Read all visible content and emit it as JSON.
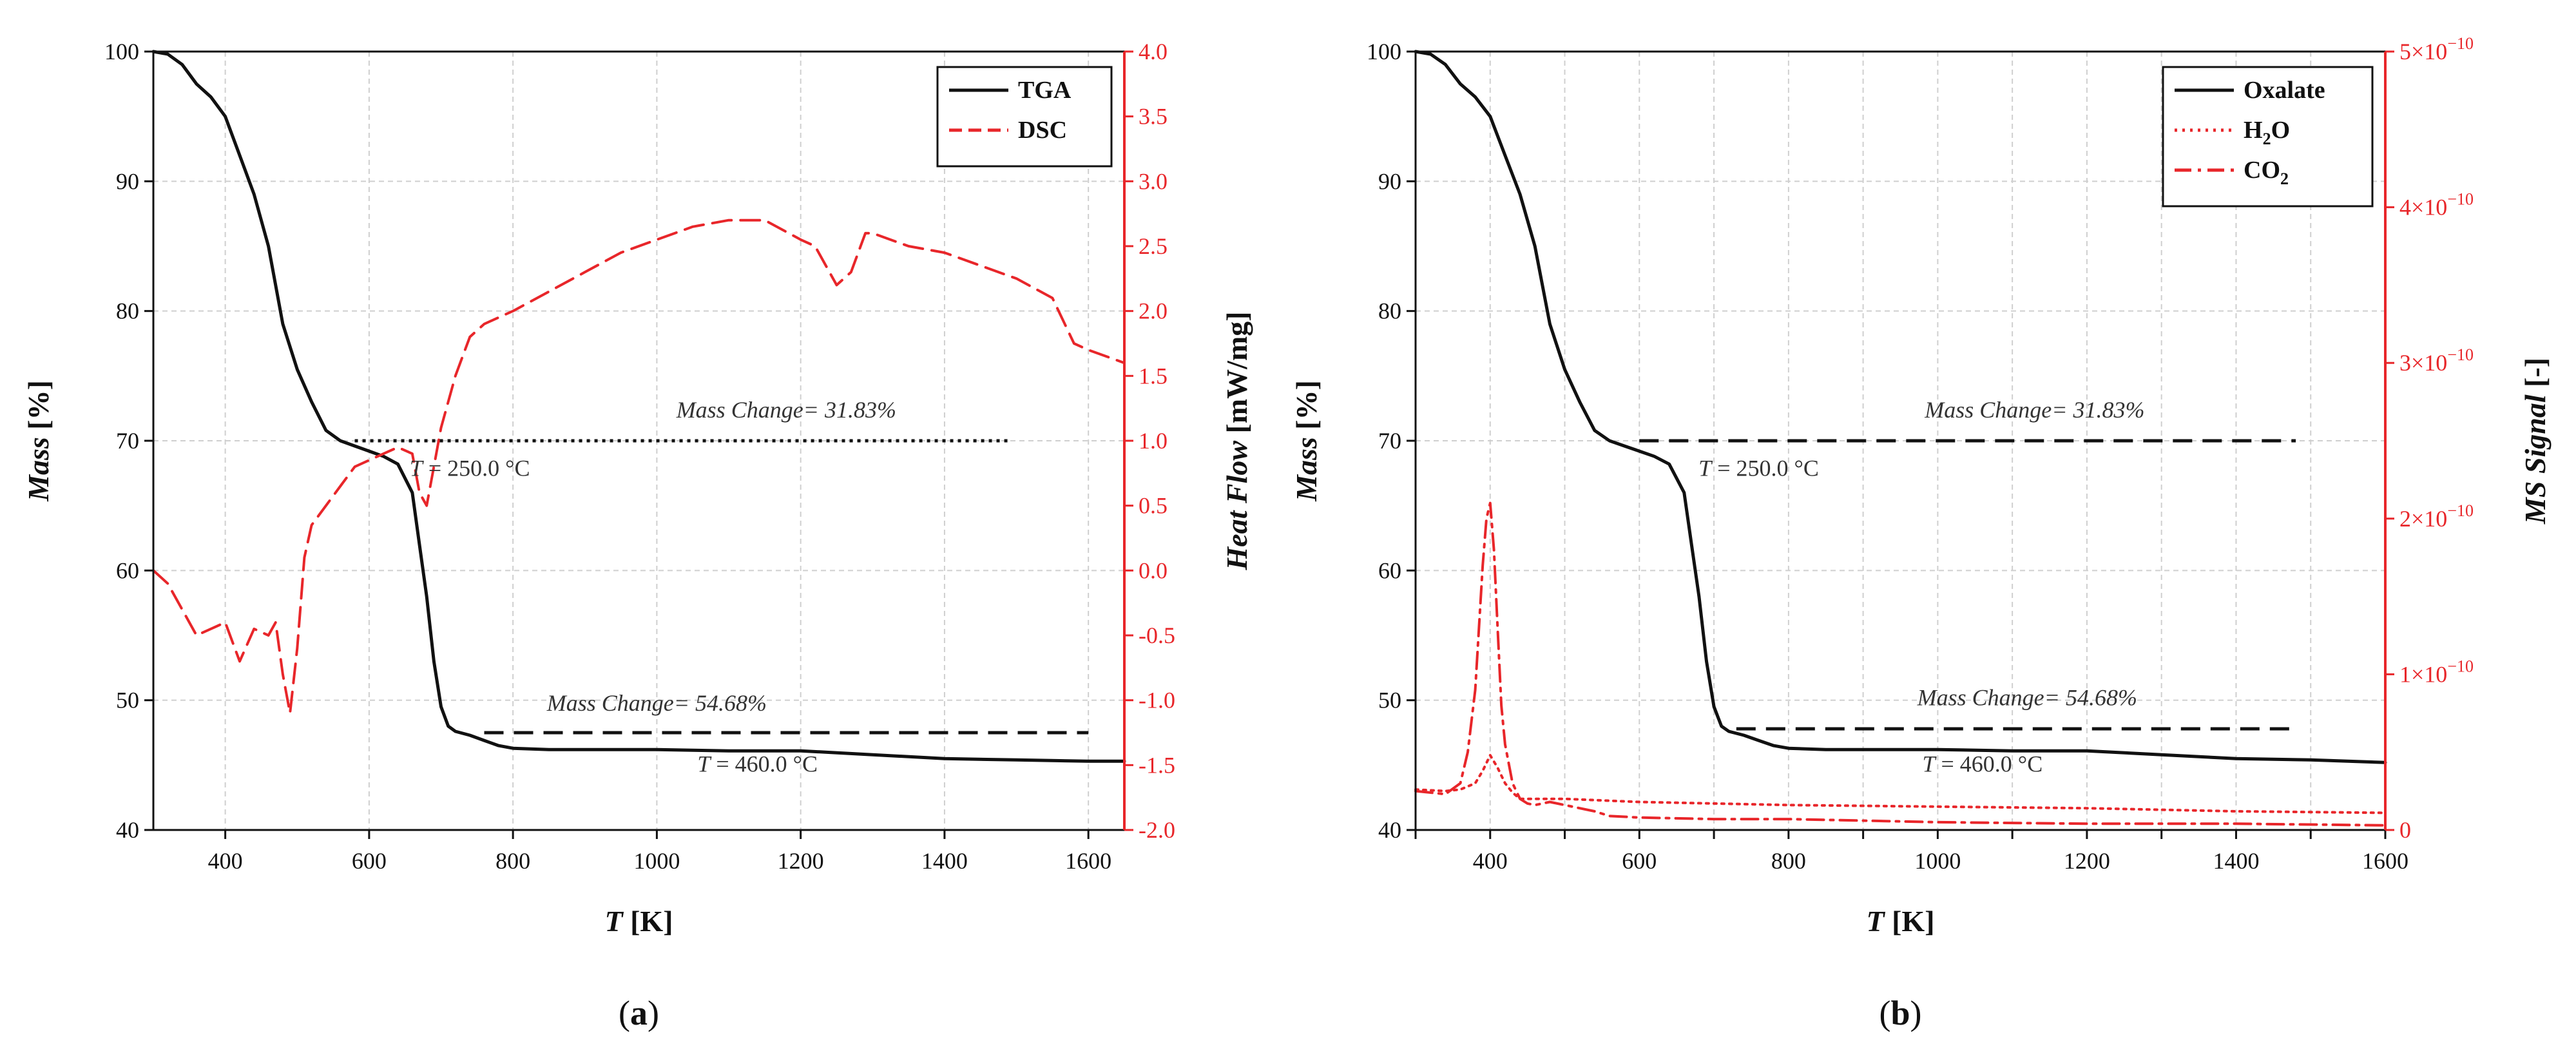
{
  "colors": {
    "black": "#111111",
    "red": "#e8262a",
    "grid": "#cfcfcf"
  },
  "chart_data": [
    {
      "type": "line",
      "panel_label": "(a)",
      "panel_letter": "a",
      "xlabel": "T",
      "xunit": " [K]",
      "ylabel": "Mass",
      "yunit": " [%]",
      "y2label": "Heat Flow",
      "y2unit": " [mW/mg]",
      "xlim": [
        300,
        1650
      ],
      "ylim": [
        40,
        100
      ],
      "y2lim": [
        -2.0,
        4.0
      ],
      "xticks": [
        400,
        600,
        800,
        1000,
        1200,
        1400,
        1600
      ],
      "yticks": [
        40,
        50,
        60,
        70,
        80,
        90,
        100
      ],
      "y2ticks": [
        "-2.0",
        "-1.5",
        "-1.0",
        "-0.5",
        "0.0",
        "0.5",
        "1.0",
        "1.5",
        "2.0",
        "2.5",
        "3.0",
        "3.5",
        "4.0"
      ],
      "legend": [
        {
          "name": "TGA",
          "style": "solid"
        },
        {
          "name": "DSC",
          "style": "dashed"
        }
      ],
      "series": [
        {
          "name": "TGA",
          "axis": "left",
          "style": "solid",
          "x": [
            300,
            320,
            340,
            360,
            380,
            400,
            420,
            440,
            460,
            480,
            500,
            520,
            540,
            560,
            580,
            600,
            620,
            640,
            660,
            670,
            680,
            690,
            700,
            710,
            720,
            740,
            760,
            780,
            800,
            850,
            900,
            1000,
            1100,
            1200,
            1300,
            1400,
            1500,
            1600,
            1650
          ],
          "y": [
            100,
            99.8,
            99,
            97.5,
            96.5,
            95,
            92,
            89,
            85,
            79,
            75.5,
            73,
            70.8,
            70,
            69.6,
            69.2,
            68.8,
            68.2,
            66,
            62,
            58,
            53,
            49.5,
            48,
            47.6,
            47.3,
            46.9,
            46.5,
            46.3,
            46.2,
            46.2,
            46.2,
            46.1,
            46.1,
            45.8,
            45.5,
            45.4,
            45.3,
            45.3
          ]
        },
        {
          "name": "DSC",
          "axis": "right",
          "style": "dashed",
          "x": [
            300,
            320,
            340,
            360,
            380,
            400,
            420,
            440,
            460,
            470,
            480,
            490,
            500,
            510,
            520,
            540,
            560,
            580,
            600,
            620,
            640,
            660,
            670,
            680,
            690,
            700,
            720,
            740,
            760,
            800,
            850,
            900,
            950,
            1000,
            1050,
            1100,
            1150,
            1200,
            1220,
            1250,
            1270,
            1290,
            1300,
            1350,
            1400,
            1450,
            1500,
            1550,
            1580,
            1600,
            1650
          ],
          "y": [
            0.0,
            -0.1,
            -0.3,
            -0.5,
            -0.45,
            -0.4,
            -0.7,
            -0.45,
            -0.5,
            -0.4,
            -0.8,
            -1.1,
            -0.6,
            0.1,
            0.35,
            0.5,
            0.65,
            0.8,
            0.85,
            0.9,
            0.95,
            0.9,
            0.6,
            0.5,
            0.8,
            1.1,
            1.5,
            1.8,
            1.9,
            2.0,
            2.15,
            2.3,
            2.45,
            2.55,
            2.65,
            2.7,
            2.7,
            2.55,
            2.5,
            2.2,
            2.3,
            2.6,
            2.6,
            2.5,
            2.45,
            2.35,
            2.25,
            2.1,
            1.75,
            1.7,
            1.6
          ]
        }
      ],
      "hlines": [
        {
          "style": "dotted",
          "x1": 580,
          "x2": 1490,
          "y": 70
        },
        {
          "style": "dashed",
          "x1": 760,
          "x2": 1600,
          "y": 47.5
        }
      ],
      "annotations": [
        {
          "text": "Mass Change= 31.83%",
          "x": 1180,
          "y": 71.8
        },
        {
          "text": "Mass Change= 54.68%",
          "x": 1000,
          "y": 49.2
        }
      ],
      "temp_annotations": [
        {
          "var": "T",
          "rest": " = 250.0 °C",
          "x": 740,
          "y": 67.3
        },
        {
          "var": "T",
          "rest": " = 460.0 °C",
          "x": 1140,
          "y": 44.5
        }
      ]
    },
    {
      "type": "line",
      "panel_label": "(b)",
      "panel_letter": "b",
      "xlabel": "T",
      "xunit": " [K]",
      "ylabel": "Mass",
      "yunit": " [%]",
      "y2label": "MS Signal",
      "y2unit": " [-]",
      "xlim": [
        300,
        1600
      ],
      "ylim": [
        40,
        100
      ],
      "y2lim": [
        0,
        5
      ],
      "xticks": [
        300,
        400,
        500,
        600,
        700,
        800,
        900,
        1000,
        1100,
        1200,
        1300,
        1400,
        1500,
        1600
      ],
      "xtick_labels": [
        "400",
        "600",
        "800",
        "1000",
        "1200",
        "1400",
        "1600"
      ],
      "xtick_label_values": [
        400,
        600,
        800,
        1000,
        1200,
        1400,
        1600
      ],
      "yticks": [
        40,
        50,
        60,
        70,
        80,
        90,
        100
      ],
      "y2ticks": [
        {
          "v": 0,
          "label": "0"
        },
        {
          "v": 1,
          "label": "1×10"
        },
        {
          "v": 2,
          "label": "2×10"
        },
        {
          "v": 3,
          "label": "3×10"
        },
        {
          "v": 4,
          "label": "4×10"
        },
        {
          "v": 5,
          "label": "5×10"
        }
      ],
      "y2_exp": "−10",
      "y2_scale_note": "signal in units of 1e-10",
      "legend": [
        {
          "name": "Oxalate",
          "style": "solid",
          "sub": ""
        },
        {
          "name": "H",
          "style": "dotted",
          "sub": "2",
          "tail": "O"
        },
        {
          "name": "CO",
          "style": "dashdot",
          "sub": "2",
          "tail": ""
        }
      ],
      "series": [
        {
          "name": "Oxalate",
          "axis": "left",
          "style": "solid",
          "x": [
            300,
            320,
            340,
            360,
            380,
            400,
            420,
            440,
            460,
            480,
            500,
            520,
            540,
            560,
            580,
            600,
            620,
            640,
            660,
            670,
            680,
            690,
            700,
            710,
            720,
            740,
            760,
            780,
            800,
            850,
            900,
            1000,
            1100,
            1200,
            1300,
            1400,
            1500,
            1600
          ],
          "y": [
            100,
            99.8,
            99,
            97.5,
            96.5,
            95,
            92,
            89,
            85,
            79,
            75.5,
            73,
            70.8,
            70,
            69.6,
            69.2,
            68.8,
            68.2,
            66,
            62,
            58,
            53,
            49.5,
            48,
            47.6,
            47.3,
            46.9,
            46.5,
            46.3,
            46.2,
            46.2,
            46.2,
            46.1,
            46.1,
            45.8,
            45.5,
            45.4,
            45.2
          ]
        },
        {
          "name": "H2O",
          "axis": "right",
          "style": "dotted",
          "x": [
            300,
            340,
            360,
            380,
            390,
            400,
            410,
            420,
            430,
            440,
            450,
            460,
            480,
            500,
            600,
            800,
            1000,
            1200,
            1400,
            1600
          ],
          "y": [
            0.26,
            0.25,
            0.26,
            0.3,
            0.38,
            0.48,
            0.4,
            0.3,
            0.24,
            0.2,
            0.2,
            0.2,
            0.2,
            0.2,
            0.18,
            0.16,
            0.15,
            0.14,
            0.12,
            0.11
          ]
        },
        {
          "name": "CO2",
          "axis": "right",
          "style": "dashdot",
          "x": [
            300,
            340,
            360,
            370,
            380,
            385,
            390,
            395,
            400,
            405,
            410,
            415,
            420,
            430,
            440,
            450,
            460,
            480,
            500,
            520,
            540,
            560,
            600,
            700,
            800,
            1000,
            1200,
            1400,
            1600
          ],
          "y": [
            0.25,
            0.23,
            0.3,
            0.5,
            0.9,
            1.3,
            1.7,
            2.0,
            2.1,
            1.8,
            1.3,
            0.8,
            0.55,
            0.3,
            0.2,
            0.17,
            0.16,
            0.18,
            0.16,
            0.14,
            0.12,
            0.09,
            0.08,
            0.07,
            0.07,
            0.05,
            0.04,
            0.04,
            0.03
          ]
        }
      ],
      "hlines": [
        {
          "style": "dashed",
          "x1": 600,
          "x2": 1480,
          "y": 70
        },
        {
          "style": "dashed",
          "x1": 730,
          "x2": 1480,
          "y": 47.8
        }
      ],
      "annotations": [
        {
          "text": "Mass Change= 31.83%",
          "x": 1130,
          "y": 71.8
        },
        {
          "text": "Mass Change= 54.68%",
          "x": 1120,
          "y": 49.6
        }
      ],
      "temp_annotations": [
        {
          "var": "T",
          "rest": " = 250.0 °C",
          "x": 760,
          "y": 67.3
        },
        {
          "var": "T",
          "rest": " = 460.0 °C",
          "x": 1060,
          "y": 44.5
        }
      ]
    }
  ]
}
